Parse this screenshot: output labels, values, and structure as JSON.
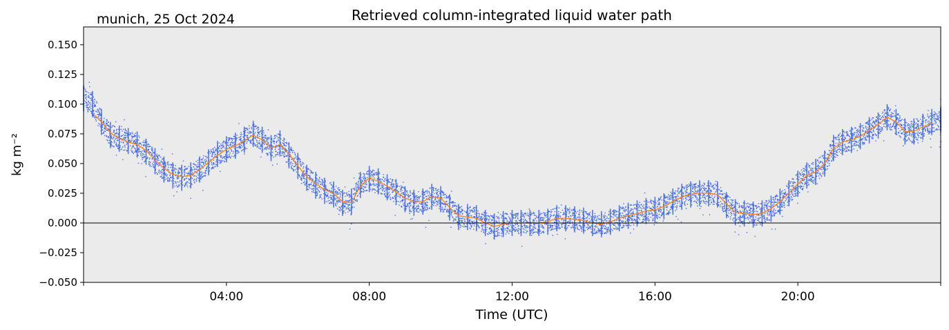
{
  "chart_data": {
    "type": "scatter",
    "title": "Retrieved column-integrated liquid water path",
    "subtitle": "munich, 25 Oct 2024",
    "xlabel": "Time (UTC)",
    "ylabel": "kg m⁻²",
    "xlim": [
      0,
      24
    ],
    "ylim": [
      -0.05,
      0.165
    ],
    "x_tick_labels": [
      "04:00",
      "08:00",
      "12:00",
      "16:00",
      "20:00"
    ],
    "x_ticks": [
      4,
      8,
      12,
      16,
      20
    ],
    "y_ticks": [
      -0.05,
      -0.025,
      0.0,
      0.025,
      0.05,
      0.075,
      0.1,
      0.125,
      0.15
    ],
    "y_tick_labels": [
      "−0.050",
      "−0.025",
      "0.000",
      "0.025",
      "0.050",
      "0.075",
      "0.100",
      "0.125",
      "0.150"
    ],
    "zero_line": 0.0,
    "background": "#ebebeb",
    "series": [
      {
        "kind": "scatter",
        "color": "#4169e1",
        "x": [
          0.0,
          0.25,
          0.5,
          0.75,
          1.0,
          1.25,
          1.5,
          1.75,
          2.0,
          2.25,
          2.5,
          2.75,
          3.0,
          3.25,
          3.5,
          3.75,
          4.0,
          4.25,
          4.5,
          4.75,
          5.0,
          5.25,
          5.5,
          5.75,
          6.0,
          6.25,
          6.5,
          6.75,
          7.0,
          7.25,
          7.5,
          7.75,
          8.0,
          8.25,
          8.5,
          8.75,
          9.0,
          9.25,
          9.5,
          9.75,
          10.0,
          10.25,
          10.5,
          10.75,
          11.0,
          11.25,
          11.5,
          11.75,
          12.0,
          12.25,
          12.5,
          12.75,
          13.0,
          13.25,
          13.5,
          13.75,
          14.0,
          14.25,
          14.5,
          14.75,
          15.0,
          15.25,
          15.5,
          15.75,
          16.0,
          16.25,
          16.5,
          16.75,
          17.0,
          17.25,
          17.5,
          17.75,
          18.0,
          18.25,
          18.5,
          18.75,
          19.0,
          19.25,
          19.5,
          19.75,
          20.0,
          20.25,
          20.5,
          20.75,
          21.0,
          21.25,
          21.5,
          21.75,
          22.0,
          22.25,
          22.5,
          22.75,
          23.0,
          23.25,
          23.5,
          23.75,
          24.0
        ],
        "y": [
          0.105,
          0.1,
          0.085,
          0.074,
          0.071,
          0.069,
          0.066,
          0.06,
          0.052,
          0.045,
          0.04,
          0.038,
          0.04,
          0.045,
          0.051,
          0.058,
          0.062,
          0.065,
          0.07,
          0.075,
          0.07,
          0.063,
          0.067,
          0.057,
          0.048,
          0.038,
          0.032,
          0.027,
          0.024,
          0.017,
          0.018,
          0.032,
          0.037,
          0.035,
          0.03,
          0.026,
          0.02,
          0.017,
          0.018,
          0.022,
          0.02,
          0.013,
          0.005,
          0.005,
          0.004,
          0.0,
          -0.003,
          -0.001,
          0.0,
          0.0,
          0.0,
          0.0,
          0.001,
          0.004,
          0.004,
          0.003,
          0.002,
          0.0,
          -0.001,
          0.001,
          0.004,
          0.006,
          0.008,
          0.01,
          0.011,
          0.014,
          0.018,
          0.022,
          0.024,
          0.025,
          0.025,
          0.024,
          0.015,
          0.009,
          0.008,
          0.007,
          0.008,
          0.012,
          0.018,
          0.025,
          0.033,
          0.04,
          0.043,
          0.05,
          0.063,
          0.068,
          0.07,
          0.073,
          0.078,
          0.082,
          0.089,
          0.085,
          0.077,
          0.077,
          0.081,
          0.085,
          0.087
        ]
      },
      {
        "kind": "line",
        "color": "#ff7f0e",
        "x": [
          0.3,
          0.5,
          0.75,
          1.0,
          1.25,
          1.5,
          1.75,
          2.0,
          2.25,
          2.5,
          2.75,
          3.0,
          3.25,
          3.5,
          3.75,
          4.0,
          4.25,
          4.5,
          4.75,
          5.0,
          5.25,
          5.5,
          5.75,
          6.0,
          6.25,
          6.5,
          6.75,
          7.0,
          7.25,
          7.5,
          7.75,
          8.0,
          8.25,
          8.5,
          8.75,
          9.0,
          9.25,
          9.5,
          9.75,
          10.0,
          10.25,
          10.5,
          10.75,
          11.0,
          11.25,
          11.5,
          11.75,
          12.0,
          12.25,
          12.5,
          12.75,
          13.0,
          13.25,
          13.5,
          13.75,
          14.0,
          14.25,
          14.5,
          14.75,
          15.0,
          15.25,
          15.5,
          15.75,
          16.0,
          16.25,
          16.5,
          16.75,
          17.0,
          17.25,
          17.5,
          17.75,
          18.0,
          18.25,
          18.5,
          18.75,
          19.0,
          19.25,
          19.5,
          19.75,
          20.0,
          20.25,
          20.5,
          20.75,
          21.0,
          21.25,
          21.5,
          21.75,
          22.0,
          22.25,
          22.5,
          22.75,
          23.0,
          23.25,
          23.5,
          23.75
        ],
        "y": [
          0.091,
          0.085,
          0.076,
          0.071,
          0.068,
          0.066,
          0.061,
          0.053,
          0.046,
          0.041,
          0.039,
          0.04,
          0.045,
          0.051,
          0.057,
          0.062,
          0.065,
          0.069,
          0.074,
          0.07,
          0.063,
          0.066,
          0.058,
          0.048,
          0.039,
          0.033,
          0.028,
          0.025,
          0.018,
          0.017,
          0.031,
          0.038,
          0.035,
          0.031,
          0.026,
          0.021,
          0.018,
          0.018,
          0.022,
          0.021,
          0.013,
          0.006,
          0.005,
          0.004,
          0.0,
          -0.003,
          -0.001,
          0.0,
          0.0,
          0.0,
          0.0,
          0.001,
          0.004,
          0.004,
          0.003,
          0.002,
          0.0,
          -0.001,
          0.001,
          0.004,
          0.006,
          0.008,
          0.01,
          0.011,
          0.014,
          0.018,
          0.022,
          0.024,
          0.025,
          0.025,
          0.024,
          0.016,
          0.009,
          0.008,
          0.007,
          0.008,
          0.012,
          0.018,
          0.025,
          0.033,
          0.04,
          0.043,
          0.05,
          0.063,
          0.068,
          0.07,
          0.073,
          0.078,
          0.083,
          0.089,
          0.085,
          0.077,
          0.077,
          0.081,
          0.084
        ]
      }
    ]
  }
}
